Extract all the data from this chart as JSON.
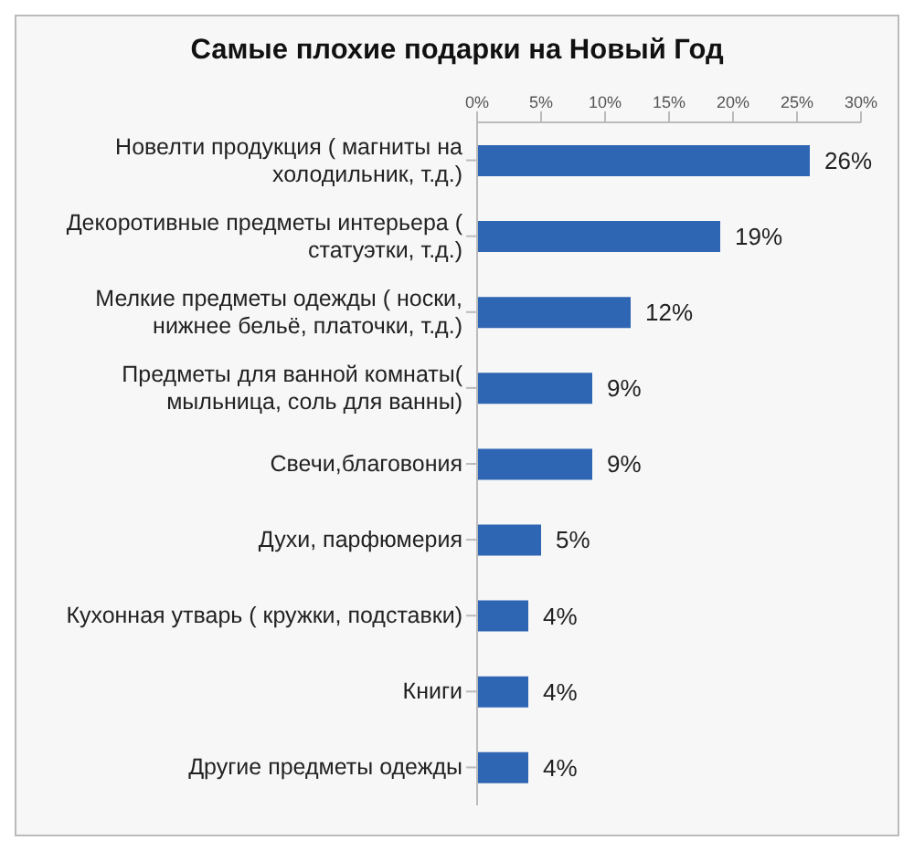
{
  "chart_data": {
    "type": "bar",
    "orientation": "horizontal",
    "title": "Самые плохие подарки на Новый Год",
    "categories": [
      "Новелти продукция ( магниты на холодильник, т.д.)",
      "Декоротивные предметы интерьера ( статуэтки, т.д.)",
      "Мелкие предметы одежды ( носки, нижнее бельё, платочки, т.д.)",
      "Предметы для ванной комнаты( мыльница, соль для ванны)",
      "Свечи,благовония",
      "Духи, парфюмерия",
      "Кухонная утварь ( кружки, подставки)",
      "Книги",
      "Другие предметы одежды"
    ],
    "values": [
      26,
      19,
      12,
      9,
      9,
      5,
      4,
      4,
      4
    ],
    "value_labels": [
      "26%",
      "19%",
      "12%",
      "9%",
      "9%",
      "5%",
      "4%",
      "4%",
      "4%"
    ],
    "color": "#2f66b3",
    "xlim": [
      0,
      30
    ],
    "xticks": [
      {
        "value": 0,
        "label": "0%"
      },
      {
        "value": 5,
        "label": "5%"
      },
      {
        "value": 10,
        "label": "10%"
      },
      {
        "value": 15,
        "label": "15%"
      },
      {
        "value": 20,
        "label": "20%"
      },
      {
        "value": 25,
        "label": "25%"
      },
      {
        "value": 30,
        "label": "30%"
      }
    ],
    "grid": false,
    "legend": false
  }
}
